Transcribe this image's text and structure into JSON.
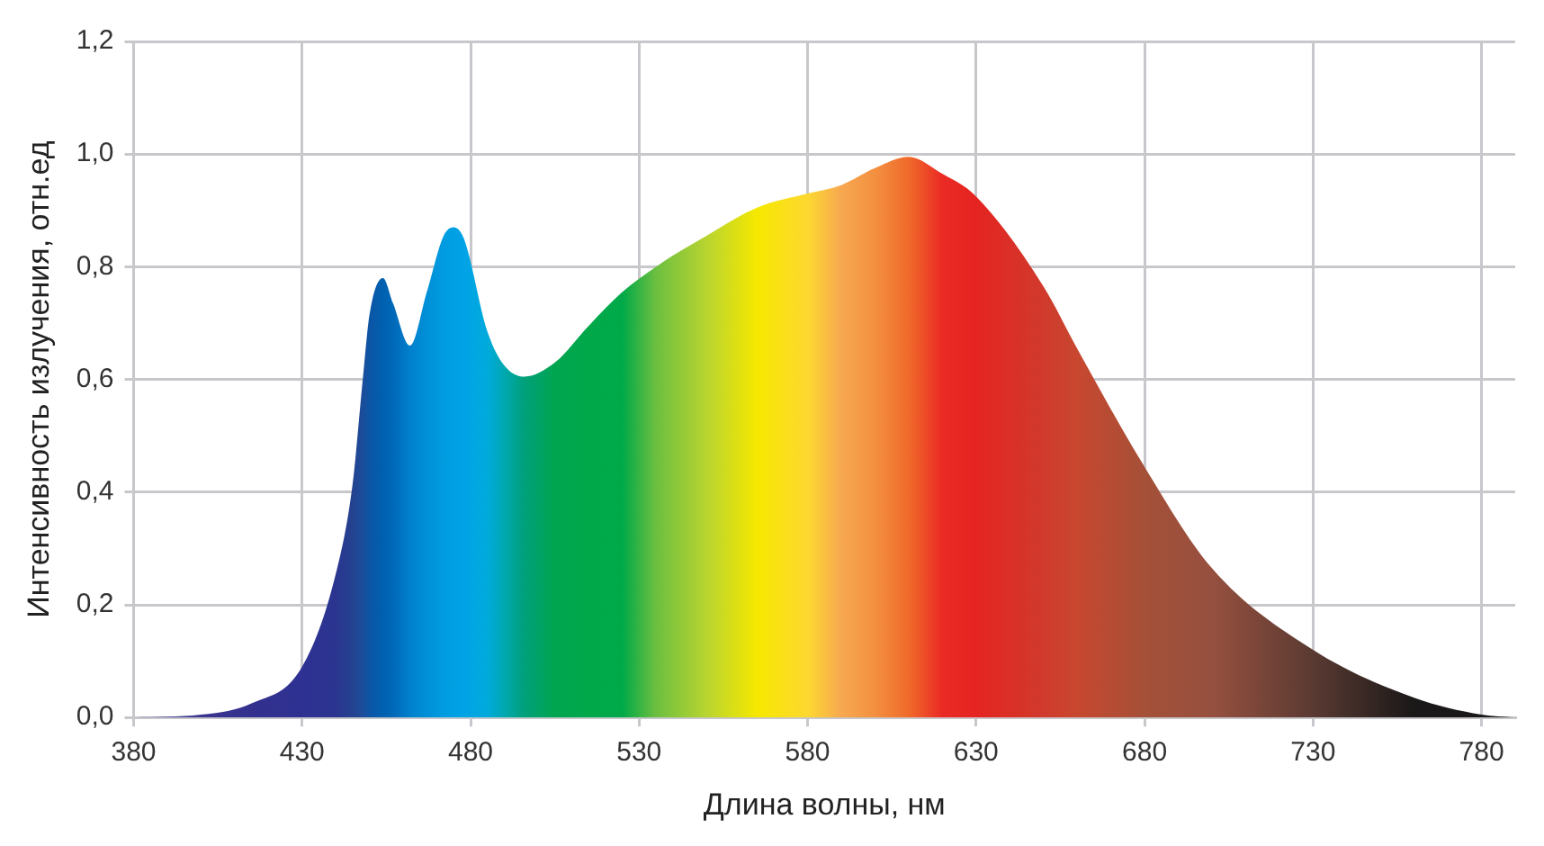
{
  "chart_data": {
    "type": "area",
    "xlabel": "Длина волны, нм",
    "ylabel": "Интенсивность излучения, отн.ед",
    "x": [
      380,
      400,
      415,
      430,
      440,
      445,
      448,
      450,
      454,
      457,
      462,
      467,
      472,
      475,
      478,
      485,
      490,
      496,
      505,
      515,
      525,
      535,
      550,
      565,
      580,
      590,
      600,
      610,
      620,
      630,
      650,
      660,
      680,
      700,
      730,
      760,
      780,
      790
    ],
    "series": [
      {
        "values": [
          0,
          0.005,
          0.025,
          0.09,
          0.255,
          0.415,
          0.6,
          0.715,
          0.78,
          0.735,
          0.66,
          0.755,
          0.855,
          0.87,
          0.85,
          0.685,
          0.625,
          0.605,
          0.63,
          0.695,
          0.755,
          0.8,
          0.855,
          0.905,
          0.93,
          0.945,
          0.975,
          0.995,
          0.965,
          0.925,
          0.765,
          0.655,
          0.445,
          0.265,
          0.12,
          0.035,
          0.005,
          0
        ],
        "colors": [
          "#5a5aa0",
          "#3a3590",
          "#33308e",
          "#2e3192",
          "#2b3590",
          "#24428f",
          "#1b4d9a",
          "#0d55a5",
          "#0060b0",
          "#0068b8",
          "#0080cc",
          "#0090d8",
          "#009be0",
          "#00a0e3",
          "#00a3e6",
          "#00aadc",
          "#00a8b0",
          "#00a07a",
          "#00a550",
          "#00a84a",
          "#00a948",
          "#6cbf40",
          "#b8d430",
          "#f6e800",
          "#fdd830",
          "#f7a850",
          "#f39040",
          "#f06a2a",
          "#ea2a24",
          "#e52421",
          "#d03a2c",
          "#c8472f",
          "#a55038",
          "#96503f",
          "#5a3a32",
          "#1a1818",
          "#1a1818",
          "#1a1818"
        ]
      }
    ],
    "xlim": [
      380,
      790
    ],
    "xticks": [
      380,
      430,
      480,
      530,
      580,
      630,
      680,
      730,
      780
    ],
    "ylim": [
      0,
      1.2
    ],
    "yticks": [
      {
        "value": 0,
        "label": "0,0"
      },
      {
        "value": 0.2,
        "label": "0,2"
      },
      {
        "value": 0.4,
        "label": "0,4"
      },
      {
        "value": 0.6,
        "label": "0,6"
      },
      {
        "value": 0.8,
        "label": "0,8"
      },
      {
        "value": 1,
        "label": "1,0"
      },
      {
        "value": 1.2,
        "label": "1,2"
      }
    ],
    "grid": true
  }
}
